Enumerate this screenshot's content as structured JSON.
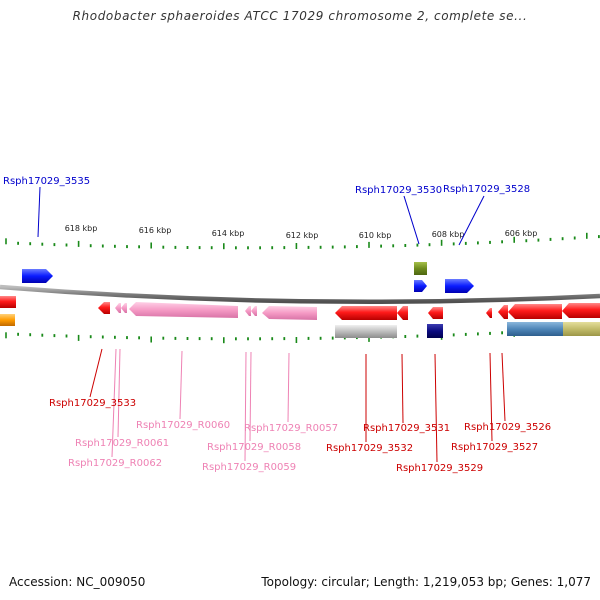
{
  "title": "Rhodobacter sphaeroides ATCC 17029 chromosome 2, complete se...",
  "colors": {
    "gene_label": "#0000cc",
    "rna_label": "#ee82b4",
    "cds_label": "#cc0000",
    "tick": "#1a8a1a",
    "backbone": "#808080"
  },
  "scale": {
    "labels": [
      "618 kbp",
      "616 kbp",
      "614 kbp",
      "612 kbp",
      "610 kbp",
      "608 kbp",
      "606 kbp"
    ]
  },
  "gene_labels": [
    {
      "label": "Rsph17029_3535",
      "kind": "gene"
    },
    {
      "label": "Rsph17029_3530",
      "kind": "gene"
    },
    {
      "label": "Rsph17029_3528",
      "kind": "gene"
    },
    {
      "label": "Rsph17029_3533",
      "kind": "cds"
    },
    {
      "label": "Rsph17029_R0060",
      "kind": "rna"
    },
    {
      "label": "Rsph17029_R0061",
      "kind": "rna"
    },
    {
      "label": "Rsph17029_R0062",
      "kind": "rna"
    },
    {
      "label": "Rsph17029_R0057",
      "kind": "rna"
    },
    {
      "label": "Rsph17029_R0058",
      "kind": "rna"
    },
    {
      "label": "Rsph17029_R0059",
      "kind": "rna"
    },
    {
      "label": "Rsph17029_3531",
      "kind": "cds"
    },
    {
      "label": "Rsph17029_3532",
      "kind": "cds"
    },
    {
      "label": "Rsph17029_3529",
      "kind": "cds"
    },
    {
      "label": "Rsph17029_3526",
      "kind": "cds"
    },
    {
      "label": "Rsph17029_3527",
      "kind": "cds"
    }
  ],
  "footer": {
    "accession": "Accession: NC_009050",
    "topology": "Topology: circular; Length: 1,219,053 bp; Genes: 1,077"
  }
}
